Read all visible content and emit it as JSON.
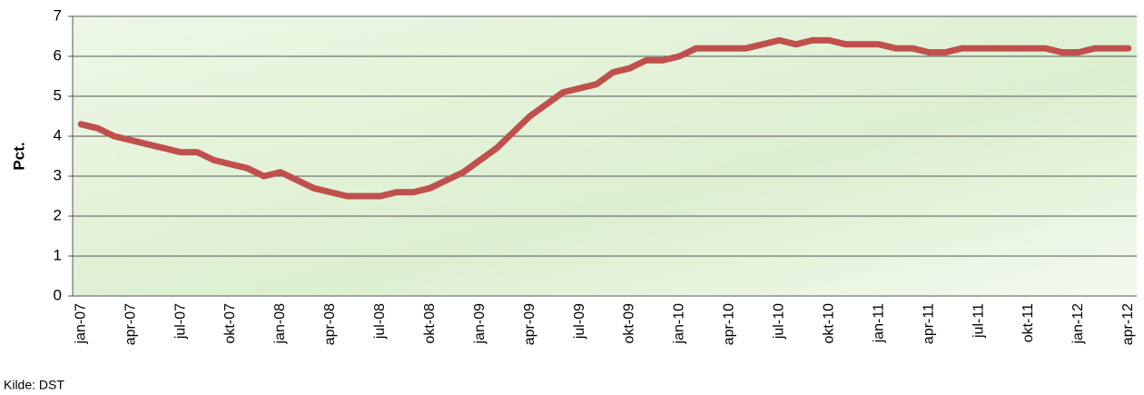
{
  "chart_data": {
    "type": "line",
    "y_label": "Pct.",
    "source": "Kilde: DST",
    "categories": [
      "jan-07",
      null,
      null,
      "apr-07",
      null,
      null,
      "jul-07",
      null,
      null,
      "okt-07",
      null,
      null,
      "jan-08",
      null,
      null,
      "apr-08",
      null,
      null,
      "jul-08",
      null,
      null,
      "okt-08",
      null,
      null,
      "jan-09",
      null,
      null,
      "apr-09",
      null,
      null,
      "jul-09",
      null,
      null,
      "okt-09",
      null,
      null,
      "jan-10",
      null,
      null,
      "apr-10",
      null,
      null,
      "jul-10",
      null,
      null,
      "okt-10",
      null,
      null,
      "jan-11",
      null,
      null,
      "apr-11",
      null,
      null,
      "jul-11",
      null,
      null,
      "okt-11",
      null,
      null,
      "jan-12",
      null,
      null,
      "apr-12"
    ],
    "values": [
      4.3,
      4.2,
      4.0,
      3.9,
      3.8,
      3.7,
      3.6,
      3.6,
      3.4,
      3.3,
      3.2,
      3.0,
      3.1,
      2.9,
      2.7,
      2.6,
      2.5,
      2.5,
      2.5,
      2.6,
      2.6,
      2.7,
      2.9,
      3.1,
      3.4,
      3.7,
      4.1,
      4.5,
      4.8,
      5.1,
      5.2,
      5.3,
      5.6,
      5.7,
      5.9,
      5.9,
      6.0,
      6.2,
      6.2,
      6.2,
      6.2,
      6.3,
      6.4,
      6.3,
      6.4,
      6.4,
      6.3,
      6.3,
      6.3,
      6.2,
      6.2,
      6.1,
      6.1,
      6.2,
      6.2,
      6.2,
      6.2,
      6.2,
      6.2,
      6.1,
      6.1,
      6.2,
      6.2,
      6.2
    ],
    "color": "#c0504d",
    "ylim": [
      0,
      7
    ],
    "yticks": [
      0,
      1,
      2,
      3,
      4,
      5,
      6,
      7
    ],
    "grid": true
  }
}
